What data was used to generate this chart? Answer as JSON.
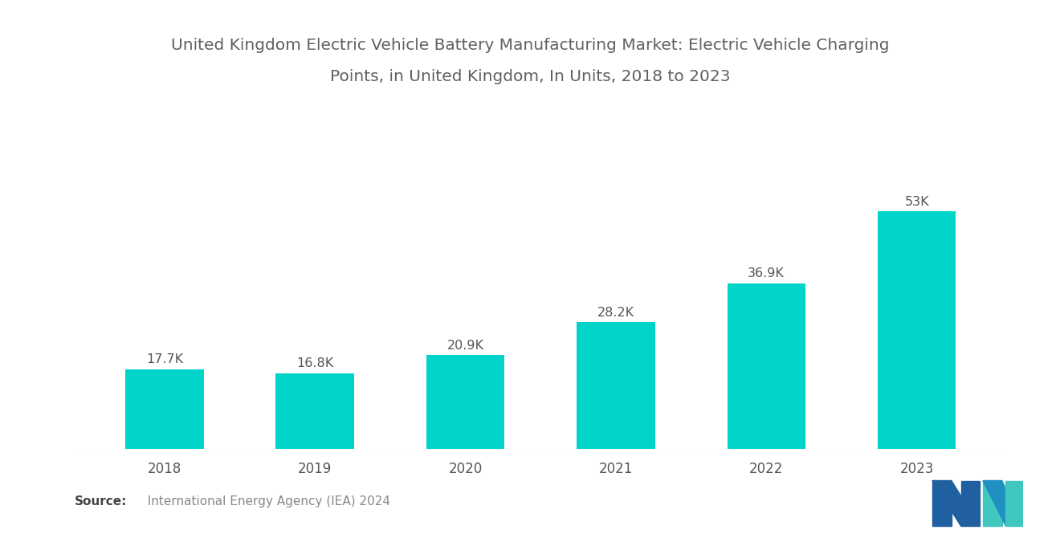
{
  "title_line1": "United Kingdom Electric Vehicle Battery Manufacturing Market: Electric Vehicle Charging",
  "title_line2": "Points, in United Kingdom, In Units, 2018 to 2023",
  "categories": [
    "2018",
    "2019",
    "2020",
    "2021",
    "2022",
    "2023"
  ],
  "values": [
    17700,
    16800,
    20900,
    28200,
    36900,
    53000
  ],
  "labels": [
    "17.7K",
    "16.8K",
    "20.9K",
    "28.2K",
    "36.9K",
    "53K"
  ],
  "bar_color": "#00D4C8",
  "background_color": "#FFFFFF",
  "title_color": "#606060",
  "label_color": "#555555",
  "tick_color": "#555555",
  "source_bold": "Source:",
  "source_text": "  International Energy Agency (IEA) 2024",
  "title_fontsize": 14.5,
  "label_fontsize": 11.5,
  "tick_fontsize": 12,
  "source_fontsize": 11,
  "ylim": [
    0,
    62000
  ],
  "bar_width": 0.52,
  "logo_color1": "#2060A0",
  "logo_color2": "#2090C0",
  "logo_color3": "#40C8C0"
}
